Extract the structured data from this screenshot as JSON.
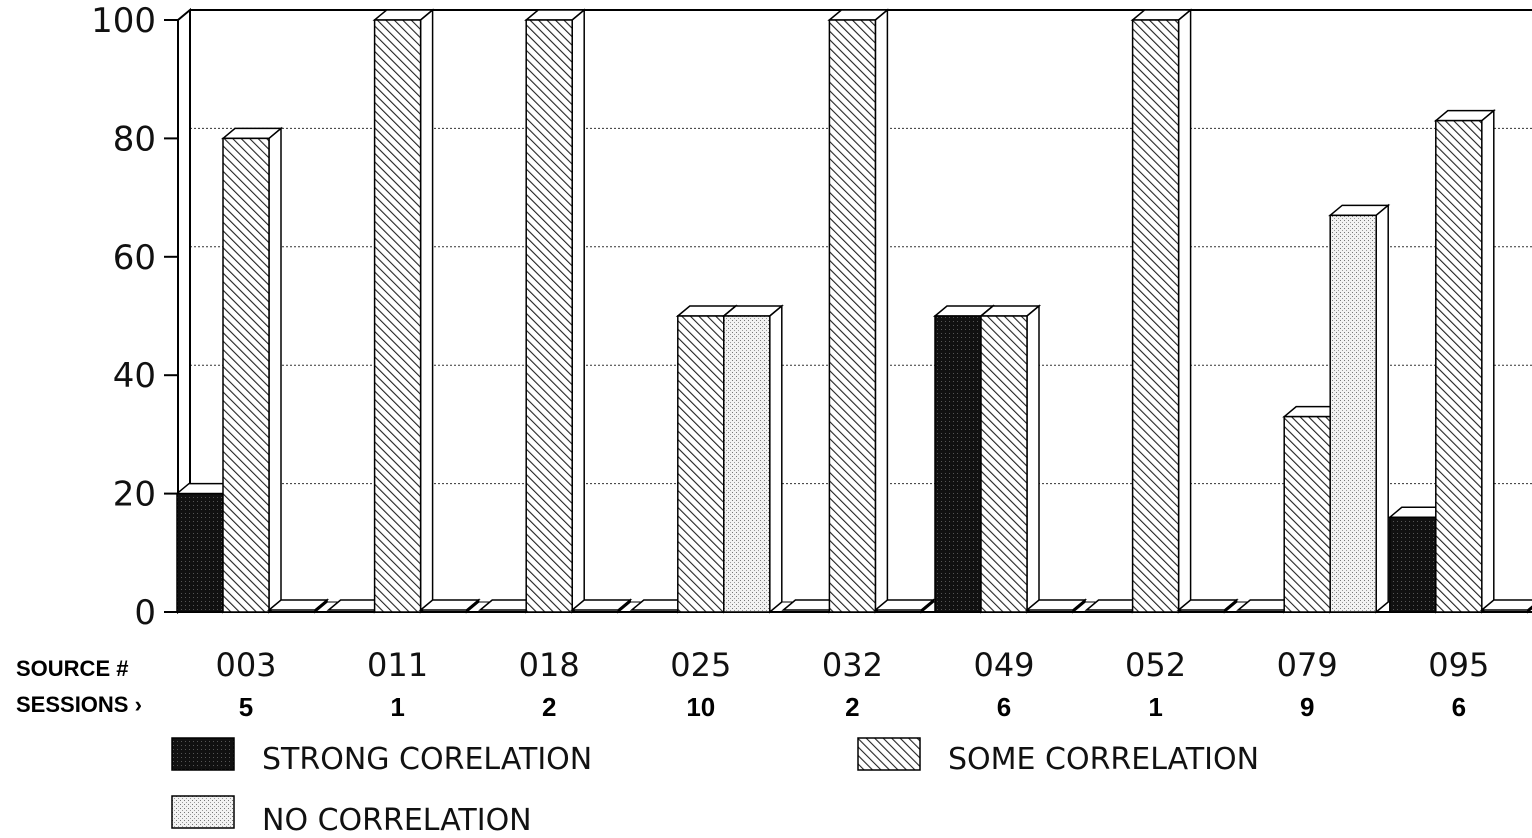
{
  "chart_data": {
    "type": "bar",
    "title": "",
    "xlabel": "",
    "ylabel": "",
    "ylim": [
      0,
      100
    ],
    "yticks": [
      "0",
      "20",
      "40",
      "60",
      "80",
      "100"
    ],
    "grid": true,
    "row_labels": {
      "source": "SOURCE #",
      "sessions": "SESSIONS ›"
    },
    "categories": [
      "003",
      "011",
      "018",
      "025",
      "032",
      "049",
      "052",
      "079",
      "095"
    ],
    "sessions": [
      "5",
      "1",
      "2",
      "10",
      "2",
      "6",
      "1",
      "9",
      "6"
    ],
    "series": [
      {
        "name": "STRONG CORELATION",
        "values": [
          20,
          0,
          0,
          0,
          0,
          50,
          0,
          0,
          16
        ]
      },
      {
        "name": "SOME CORRELATION",
        "values": [
          80,
          100,
          100,
          50,
          100,
          50,
          100,
          33,
          83
        ]
      },
      {
        "name": "NO CORRELATION",
        "values": [
          0,
          0,
          0,
          50,
          0,
          0,
          0,
          67,
          0
        ]
      }
    ],
    "legend_position": "bottom"
  }
}
